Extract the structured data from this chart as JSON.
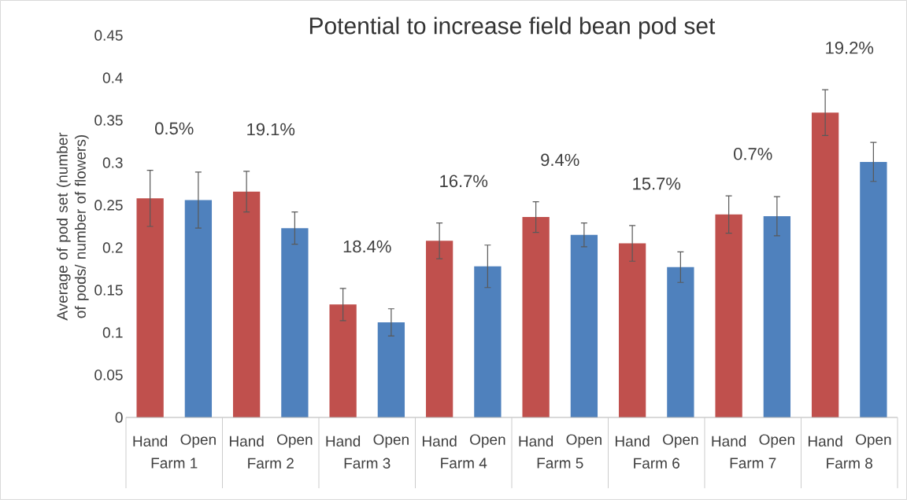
{
  "chart_data": {
    "type": "bar",
    "title": "Potential to increase field bean pod set",
    "ylabel": "Average of pod set (number of pods/ number of flowers)",
    "categories": [
      "Farm 1",
      "Farm 2",
      "Farm 3",
      "Farm 4",
      "Farm 5",
      "Farm 6",
      "Farm 7",
      "Farm 8"
    ],
    "series": [
      {
        "name": "Hand",
        "color": "#c0504d",
        "values": [
          0.258,
          0.266,
          0.133,
          0.208,
          0.236,
          0.205,
          0.239,
          0.359
        ],
        "errors": [
          0.033,
          0.024,
          0.019,
          0.021,
          0.018,
          0.021,
          0.022,
          0.027
        ]
      },
      {
        "name": "Open",
        "color": "#4f81bd",
        "values": [
          0.256,
          0.223,
          0.112,
          0.178,
          0.215,
          0.177,
          0.237,
          0.301
        ],
        "errors": [
          0.033,
          0.019,
          0.016,
          0.025,
          0.014,
          0.018,
          0.023,
          0.023
        ]
      }
    ],
    "ylim": [
      0,
      0.45
    ],
    "yticks": [
      0,
      0.05,
      0.1,
      0.15,
      0.2,
      0.25,
      0.3,
      0.35,
      0.4,
      0.45
    ],
    "grid": false,
    "annotations": [
      "0.5%",
      "19.1%",
      "18.4%",
      "16.7%",
      "9.4%",
      "15.7%",
      "0.7%",
      "19.2%"
    ]
  }
}
